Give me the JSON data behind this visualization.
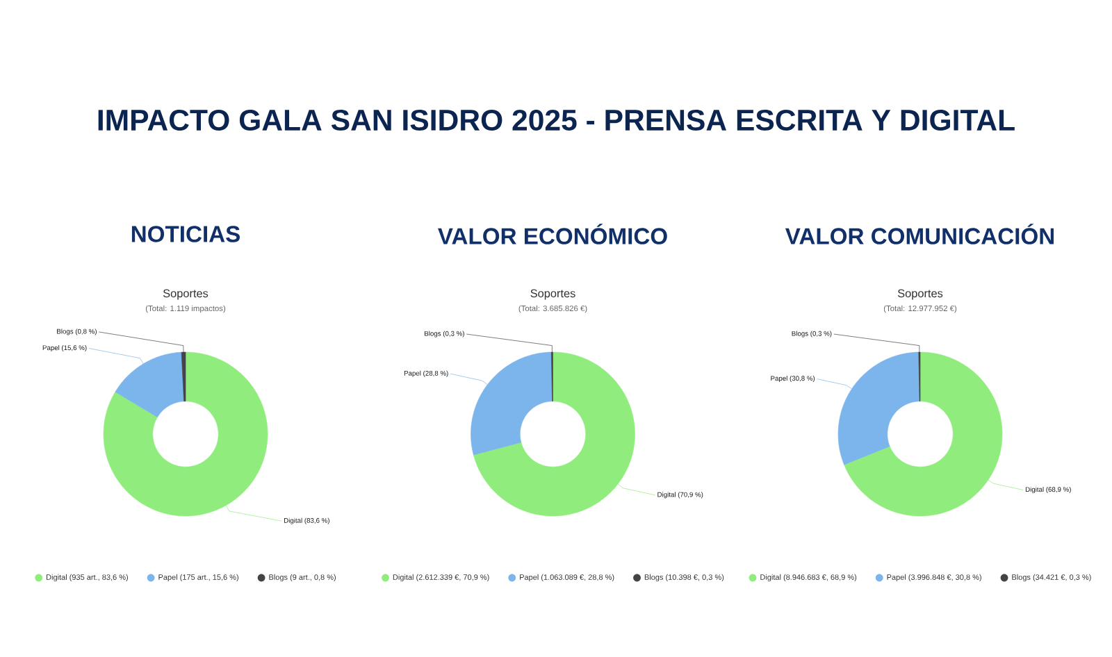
{
  "chart_data": [
    {
      "type": "other",
      "title": "IMPACTO GALA SAN ISIDRO 2025 - PRENSA ESCRITA Y DIGITAL"
    },
    {
      "type": "donut",
      "title": "NOTICIAS",
      "subtitle": "Soportes",
      "annotations": [
        "(Total: 1.119 impactos)"
      ],
      "categories": [
        "Digital (935 art., 83,6 %)",
        "Papel (175 art., 15,6 %)",
        "Blogs (9 art., 0,8 %)"
      ],
      "values": [
        83.6,
        15.6,
        0.8
      ],
      "colors": [
        "#90ed7d",
        "#7cb5ec",
        "#434348"
      ],
      "value_labels": [
        "Digital (83,6 %)",
        "Papel (15,6 %)",
        "Blogs (0,8 %)"
      ],
      "legend": "bottom"
    },
    {
      "type": "donut",
      "title": "VALOR ECONÓMICO",
      "subtitle": "Soportes",
      "annotations": [
        "(Total: 3.685.826 €)"
      ],
      "categories": [
        "Digital (2.612.339 €, 70,9 %)",
        "Papel (1.063.089 €, 28,8 %)",
        "Blogs (10.398 €, 0,3 %)"
      ],
      "values": [
        70.9,
        28.8,
        0.3
      ],
      "colors": [
        "#90ed7d",
        "#7cb5ec",
        "#434348"
      ],
      "value_labels": [
        "Digital (70,9 %)",
        "Papel (28,8 %)",
        "Blogs (0,3 %)"
      ],
      "legend": "bottom"
    },
    {
      "type": "donut",
      "title": "VALOR COMUNICACIÓN",
      "subtitle": "Soportes",
      "annotations": [
        "(Total: 12.977.952 €)"
      ],
      "categories": [
        "Digital (8.946.683 €, 68,9 %)",
        "Papel (3.996.848 €, 30,8 %)",
        "Blogs (34.421 €, 0,3 %)"
      ],
      "values": [
        68.9,
        30.8,
        0.3
      ],
      "colors": [
        "#90ed7d",
        "#7cb5ec",
        "#434348"
      ],
      "value_labels": [
        "Digital (68,9 %)",
        "Papel (30,8 %)",
        "Blogs (0,3 %)"
      ],
      "legend": "bottom"
    }
  ]
}
